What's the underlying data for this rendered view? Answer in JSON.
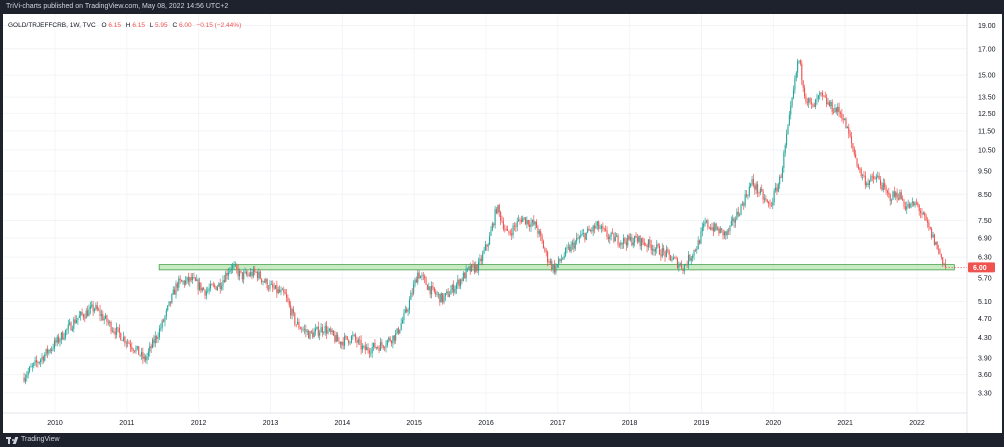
{
  "header": {
    "published_text": "TriVi-charts published on TradingView.com, May 08, 2022 14:56 UTC+2"
  },
  "legend": {
    "symbol_text": "GOLD/TRJEFFCRB, 1W, TVC",
    "o_label": "O",
    "o_value": "6.15",
    "h_label": "H",
    "h_value": "6.15",
    "l_label": "L",
    "l_value": "5.95",
    "c_label": "C",
    "c_value": "6.00",
    "change": "−0.15 (−2.44%)"
  },
  "footer": {
    "brand": "TradingView"
  },
  "colors": {
    "up": "#26a69a",
    "down": "#ef5350",
    "zone_fill": "#b7e4b0",
    "zone_stroke": "#43a047",
    "price_tag": "#ef5350",
    "background": "#ffffff",
    "frame": "#1e222d"
  },
  "chart_data": {
    "type": "candlestick",
    "title": "GOLD/TRJEFFCRB",
    "timeframe": "1W",
    "x_ticks": [
      "2010",
      "2011",
      "2012",
      "2013",
      "2014",
      "2015",
      "2016",
      "2017",
      "2018",
      "2019",
      "2020",
      "2021",
      "2022"
    ],
    "y_ticks": [
      "19.00",
      "17.00",
      "15.00",
      "13.50",
      "12.50",
      "11.50",
      "10.50",
      "9.50",
      "8.50",
      "7.50",
      "6.90",
      "6.30",
      "5.70",
      "5.10",
      "4.70",
      "4.30",
      "3.90",
      "3.60",
      "3.30"
    ],
    "y_scale": "log",
    "ylim": [
      3.1,
      19.5
    ],
    "last_price": "6.00",
    "support_zone": {
      "y_low": 5.93,
      "y_high": 6.08,
      "x_start": 2011.45,
      "x_end": 2022.52
    },
    "path": [
      [
        2009.55,
        3.55
      ],
      [
        2009.85,
        3.95
      ],
      [
        2010.05,
        4.25
      ],
      [
        2010.3,
        4.7
      ],
      [
        2010.55,
        4.95
      ],
      [
        2010.8,
        4.5
      ],
      [
        2011.1,
        4.1
      ],
      [
        2011.25,
        3.85
      ],
      [
        2011.5,
        4.6
      ],
      [
        2011.7,
        5.55
      ],
      [
        2011.9,
        5.65
      ],
      [
        2012.1,
        5.35
      ],
      [
        2012.3,
        5.55
      ],
      [
        2012.45,
        6.05
      ],
      [
        2012.6,
        5.75
      ],
      [
        2012.8,
        5.85
      ],
      [
        2013.0,
        5.45
      ],
      [
        2013.2,
        5.25
      ],
      [
        2013.35,
        4.6
      ],
      [
        2013.55,
        4.35
      ],
      [
        2013.75,
        4.5
      ],
      [
        2013.95,
        4.2
      ],
      [
        2014.15,
        4.3
      ],
      [
        2014.3,
        4.05
      ],
      [
        2014.55,
        4.15
      ],
      [
        2014.75,
        4.35
      ],
      [
        2014.9,
        4.9
      ],
      [
        2015.05,
        5.85
      ],
      [
        2015.25,
        5.35
      ],
      [
        2015.4,
        5.15
      ],
      [
        2015.6,
        5.55
      ],
      [
        2015.75,
        5.9
      ],
      [
        2015.9,
        6.05
      ],
      [
        2016.05,
        6.9
      ],
      [
        2016.15,
        8.0
      ],
      [
        2016.3,
        7.0
      ],
      [
        2016.5,
        7.6
      ],
      [
        2016.7,
        7.3
      ],
      [
        2016.85,
        6.3
      ],
      [
        2016.95,
        5.95
      ],
      [
        2017.1,
        6.4
      ],
      [
        2017.3,
        6.9
      ],
      [
        2017.55,
        7.3
      ],
      [
        2017.7,
        6.95
      ],
      [
        2017.9,
        6.8
      ],
      [
        2018.1,
        6.85
      ],
      [
        2018.3,
        6.65
      ],
      [
        2018.5,
        6.4
      ],
      [
        2018.75,
        6.0
      ],
      [
        2018.95,
        6.7
      ],
      [
        2019.05,
        7.4
      ],
      [
        2019.2,
        7.2
      ],
      [
        2019.35,
        7.0
      ],
      [
        2019.55,
        8.0
      ],
      [
        2019.7,
        9.0
      ],
      [
        2019.85,
        8.4
      ],
      [
        2019.95,
        8.0
      ],
      [
        2020.1,
        9.2
      ],
      [
        2020.2,
        11.5
      ],
      [
        2020.3,
        14.5
      ],
      [
        2020.35,
        16.3
      ],
      [
        2020.45,
        13.5
      ],
      [
        2020.55,
        12.8
      ],
      [
        2020.65,
        13.6
      ],
      [
        2020.8,
        12.9
      ],
      [
        2020.95,
        12.5
      ],
      [
        2021.05,
        11.3
      ],
      [
        2021.2,
        9.5
      ],
      [
        2021.3,
        9.0
      ],
      [
        2021.45,
        9.2
      ],
      [
        2021.6,
        8.4
      ],
      [
        2021.75,
        8.5
      ],
      [
        2021.85,
        8.0
      ],
      [
        2022.0,
        8.1
      ],
      [
        2022.15,
        7.3
      ],
      [
        2022.3,
        6.5
      ],
      [
        2022.4,
        6.0
      ]
    ]
  }
}
